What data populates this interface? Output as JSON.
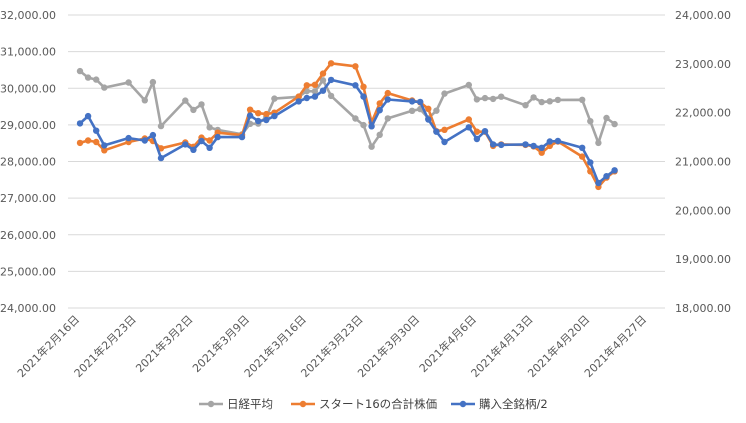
{
  "chart_data": {
    "type": "line",
    "title": "",
    "xlabel": "",
    "ylabel": "",
    "ylabel_right": "",
    "x_ticks": [
      "2021年2月16日",
      "2021年2月23日",
      "2021年3月2日",
      "2021年3月9日",
      "2021年3月16日",
      "2021年3月23日",
      "2021年3月30日",
      "2021年4月6日",
      "2021年4月13日",
      "2021年4月20日",
      "2021年4月27日"
    ],
    "x_range": [
      "2021-02-16",
      "2021-04-27"
    ],
    "ylim_left": [
      24000,
      32000
    ],
    "ylim_right": [
      18000,
      24000
    ],
    "y_ticks_left": [
      "24,000.00",
      "25,000.00",
      "26,000.00",
      "27,000.00",
      "28,000.00",
      "29,000.00",
      "30,000.00",
      "31,000.00",
      "32,000.00"
    ],
    "y_ticks_right": [
      "18,000.00",
      "19,000.00",
      "20,000.00",
      "21,000.00",
      "22,000.00",
      "23,000.00",
      "24,000.00"
    ],
    "grid": "horizontal",
    "legend_position": "bottom",
    "series": [
      {
        "name": "日経平均",
        "axis": "left",
        "color": "#a5a5a5",
        "points": [
          [
            "2021-02-16",
            30467
          ],
          [
            "2021-02-17",
            30292
          ],
          [
            "2021-02-18",
            30236
          ],
          [
            "2021-02-19",
            30017
          ],
          [
            "2021-02-22",
            30156
          ],
          [
            "2021-02-24",
            29671
          ],
          [
            "2021-02-25",
            30168
          ],
          [
            "2021-02-26",
            28966
          ],
          [
            "2021-03-01",
            29664
          ],
          [
            "2021-03-02",
            29408
          ],
          [
            "2021-03-03",
            29559
          ],
          [
            "2021-03-04",
            28930
          ],
          [
            "2021-03-05",
            28864
          ],
          [
            "2021-03-08",
            28743
          ],
          [
            "2021-03-09",
            29028
          ],
          [
            "2021-03-10",
            29036
          ],
          [
            "2021-03-11",
            29211
          ],
          [
            "2021-03-12",
            29717
          ],
          [
            "2021-03-15",
            29766
          ],
          [
            "2021-03-16",
            29921
          ],
          [
            "2021-03-17",
            29914
          ],
          [
            "2021-03-18",
            30216
          ],
          [
            "2021-03-19",
            29792
          ],
          [
            "2021-03-22",
            29174
          ],
          [
            "2021-03-23",
            28995
          ],
          [
            "2021-03-24",
            28405
          ],
          [
            "2021-03-25",
            28729
          ],
          [
            "2021-03-26",
            29176
          ],
          [
            "2021-03-29",
            29384
          ],
          [
            "2021-03-30",
            29432
          ],
          [
            "2021-03-31",
            29179
          ],
          [
            "2021-04-01",
            29388
          ],
          [
            "2021-04-02",
            29854
          ],
          [
            "2021-04-05",
            30089
          ],
          [
            "2021-04-06",
            29696
          ],
          [
            "2021-04-07",
            29730
          ],
          [
            "2021-04-08",
            29709
          ],
          [
            "2021-04-09",
            29768
          ],
          [
            "2021-04-12",
            29538
          ],
          [
            "2021-04-13",
            29751
          ],
          [
            "2021-04-14",
            29621
          ],
          [
            "2021-04-15",
            29643
          ],
          [
            "2021-04-16",
            29683
          ],
          [
            "2021-04-19",
            29685
          ],
          [
            "2021-04-20",
            29101
          ],
          [
            "2021-04-21",
            28508
          ],
          [
            "2021-04-22",
            29188
          ],
          [
            "2021-04-23",
            29020
          ]
        ]
      },
      {
        "name": "スタート16の合計株価",
        "axis": "right",
        "color": "#ed7d31",
        "points": [
          [
            "2021-02-16",
            21380
          ],
          [
            "2021-02-17",
            21430
          ],
          [
            "2021-02-18",
            21400
          ],
          [
            "2021-02-19",
            21230
          ],
          [
            "2021-02-22",
            21400
          ],
          [
            "2021-02-24",
            21470
          ],
          [
            "2021-02-25",
            21420
          ],
          [
            "2021-02-26",
            21270
          ],
          [
            "2021-03-01",
            21390
          ],
          [
            "2021-03-02",
            21300
          ],
          [
            "2021-03-03",
            21490
          ],
          [
            "2021-03-04",
            21430
          ],
          [
            "2021-03-05",
            21590
          ],
          [
            "2021-03-08",
            21540
          ],
          [
            "2021-03-09",
            22060
          ],
          [
            "2021-03-10",
            21990
          ],
          [
            "2021-03-11",
            21970
          ],
          [
            "2021-03-12",
            22000
          ],
          [
            "2021-03-15",
            22330
          ],
          [
            "2021-03-16",
            22560
          ],
          [
            "2021-03-17",
            22570
          ],
          [
            "2021-03-18",
            22800
          ],
          [
            "2021-03-19",
            23010
          ],
          [
            "2021-03-22",
            22950
          ],
          [
            "2021-03-23",
            22530
          ],
          [
            "2021-03-24",
            21800
          ],
          [
            "2021-03-25",
            22190
          ],
          [
            "2021-03-26",
            22400
          ],
          [
            "2021-03-29",
            22250
          ],
          [
            "2021-03-30",
            22210
          ],
          [
            "2021-03-31",
            22080
          ],
          [
            "2021-04-01",
            21620
          ],
          [
            "2021-04-02",
            21650
          ],
          [
            "2021-04-05",
            21860
          ],
          [
            "2021-04-06",
            21610
          ],
          [
            "2021-04-07",
            21610
          ],
          [
            "2021-04-08",
            21320
          ],
          [
            "2021-04-09",
            21350
          ],
          [
            "2021-04-12",
            21340
          ],
          [
            "2021-04-13",
            21310
          ],
          [
            "2021-04-14",
            21180
          ],
          [
            "2021-04-15",
            21320
          ],
          [
            "2021-04-16",
            21410
          ],
          [
            "2021-04-19",
            21100
          ],
          [
            "2021-04-20",
            20800
          ],
          [
            "2021-04-21",
            20480
          ],
          [
            "2021-04-22",
            20670
          ],
          [
            "2021-04-23",
            20800
          ]
        ]
      },
      {
        "name": "購入全銘柄/2",
        "axis": "right",
        "color": "#4472c4",
        "points": [
          [
            "2021-02-16",
            21780
          ],
          [
            "2021-02-17",
            21930
          ],
          [
            "2021-02-18",
            21630
          ],
          [
            "2021-02-19",
            21330
          ],
          [
            "2021-02-22",
            21480
          ],
          [
            "2021-02-24",
            21430
          ],
          [
            "2021-02-25",
            21540
          ],
          [
            "2021-02-26",
            21070
          ],
          [
            "2021-03-01",
            21350
          ],
          [
            "2021-03-02",
            21240
          ],
          [
            "2021-03-03",
            21420
          ],
          [
            "2021-03-04",
            21280
          ],
          [
            "2021-03-05",
            21500
          ],
          [
            "2021-03-08",
            21500
          ],
          [
            "2021-03-09",
            21940
          ],
          [
            "2021-03-10",
            21830
          ],
          [
            "2021-03-11",
            21850
          ],
          [
            "2021-03-12",
            21930
          ],
          [
            "2021-03-15",
            22230
          ],
          [
            "2021-03-16",
            22300
          ],
          [
            "2021-03-17",
            22330
          ],
          [
            "2021-03-18",
            22450
          ],
          [
            "2021-03-19",
            22670
          ],
          [
            "2021-03-22",
            22560
          ],
          [
            "2021-03-23",
            22330
          ],
          [
            "2021-03-24",
            21720
          ],
          [
            "2021-03-25",
            22050
          ],
          [
            "2021-03-26",
            22270
          ],
          [
            "2021-03-29",
            22230
          ],
          [
            "2021-03-30",
            22220
          ],
          [
            "2021-03-31",
            21860
          ],
          [
            "2021-04-01",
            21610
          ],
          [
            "2021-04-02",
            21400
          ],
          [
            "2021-04-05",
            21700
          ],
          [
            "2021-04-06",
            21460
          ],
          [
            "2021-04-07",
            21620
          ],
          [
            "2021-04-08",
            21350
          ],
          [
            "2021-04-09",
            21340
          ],
          [
            "2021-04-12",
            21350
          ],
          [
            "2021-04-13",
            21320
          ],
          [
            "2021-04-14",
            21280
          ],
          [
            "2021-04-15",
            21410
          ],
          [
            "2021-04-16",
            21420
          ],
          [
            "2021-04-19",
            21280
          ],
          [
            "2021-04-20",
            20980
          ],
          [
            "2021-04-21",
            20560
          ],
          [
            "2021-04-22",
            20700
          ],
          [
            "2021-04-23",
            20820
          ]
        ]
      }
    ]
  }
}
